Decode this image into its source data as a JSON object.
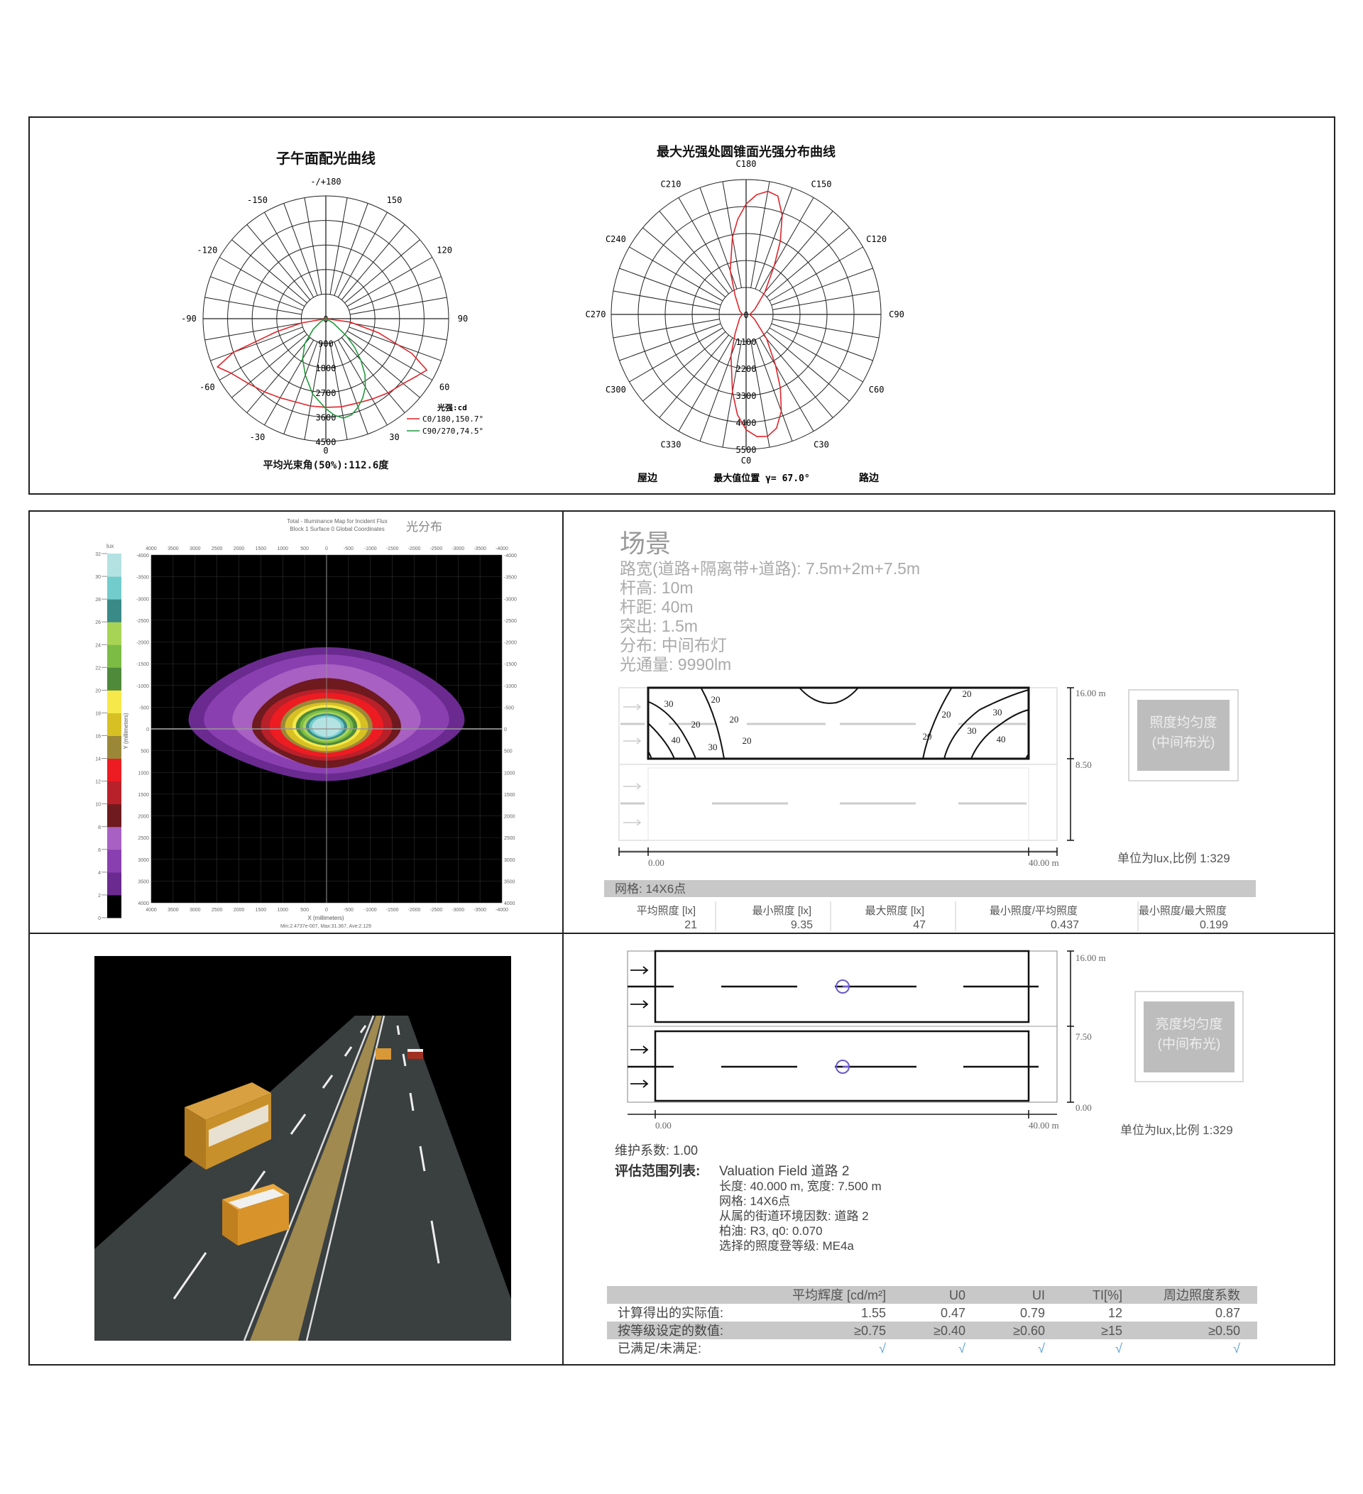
{
  "photometry": {
    "meridian_title": "子午面配光曲线",
    "meridian_angle_labels": {
      "180": "-/+180",
      "150": "150",
      "120": "120",
      "90": "90",
      "60": "60",
      "30": "30",
      "0": "0",
      "-30": "-30",
      "-60": "-60",
      "-90": "-90",
      "-120": "-120",
      "-150": "-150"
    },
    "meridian_ring_labels": [
      "0",
      "900",
      "1800",
      "2700",
      "3600",
      "4500"
    ],
    "legend_unit": "光强:cd",
    "legend": [
      {
        "label": "C0/180,150.7°",
        "color": "#e0242a"
      },
      {
        "label": "C90/270,74.5°",
        "color": "#1f9a3c"
      }
    ],
    "beam_angle": "平均光束角(50%):112.6度",
    "cone_title": "最大光强处圆锥面光强分布曲线",
    "cone_angle_labels": {
      "0": "C0",
      "30": "C30",
      "60": "C60",
      "90": "C90",
      "120": "C120",
      "150": "C150",
      "180": "C180",
      "210": "C210",
      "240": "C240",
      "270": "C270",
      "300": "C300",
      "330": "C330"
    },
    "cone_ring_labels": [
      "0",
      "1100",
      "2200",
      "3300",
      "4400",
      "5500"
    ],
    "house_side": "屋边",
    "max_position": "最大值位置 γ= 67.0°",
    "road_side": "路边"
  },
  "chart_data": [
    {
      "type": "polar",
      "title": "子午面配光曲线",
      "unit": "cd",
      "rmax": 4500,
      "angle_unit": "gamma degrees",
      "series": [
        {
          "name": "C0/180,150.7°",
          "color": "#e0242a",
          "gamma": [
            -90,
            -80,
            -75,
            -70,
            -66,
            -60,
            -50,
            -40,
            -30,
            -20,
            -10,
            0,
            10,
            20,
            30,
            40,
            50,
            58,
            63,
            68,
            75,
            82,
            90
          ],
          "cd": [
            0,
            900,
            1900,
            3600,
            4350,
            4000,
            3700,
            3500,
            3350,
            3250,
            3250,
            3250,
            3280,
            3300,
            3400,
            3550,
            3700,
            3950,
            4150,
            3400,
            2000,
            900,
            0
          ]
        },
        {
          "name": "C90/270,74.5°",
          "color": "#1f9a3c",
          "gamma": [
            -70,
            -60,
            -50,
            -40,
            -30,
            -20,
            -10,
            0,
            5,
            10,
            15,
            20,
            25,
            30,
            35,
            40,
            45,
            50,
            60,
            70
          ],
          "cd": [
            0,
            200,
            600,
            1200,
            1700,
            2200,
            2800,
            3300,
            3550,
            3700,
            3650,
            3450,
            3200,
            2900,
            2500,
            2000,
            1500,
            1000,
            300,
            0
          ]
        }
      ]
    },
    {
      "type": "polar",
      "title": "最大光强处圆锥面光强分布曲线",
      "unit": "cd",
      "rmax": 5500,
      "series": [
        {
          "color": "#e0242a",
          "c_angle": [
            0,
            5,
            10,
            15,
            20,
            25,
            30,
            40,
            60,
            90,
            120,
            140,
            150,
            155,
            160,
            165,
            170,
            175,
            180,
            185,
            190,
            200,
            210,
            240,
            270,
            300,
            330,
            340,
            350,
            355
          ],
          "cd": [
            4700,
            5000,
            5050,
            4800,
            4200,
            3300,
            2400,
            1300,
            400,
            150,
            400,
            1200,
            2300,
            3300,
            4300,
            5000,
            5100,
            4900,
            4500,
            3900,
            3200,
            1900,
            900,
            300,
            150,
            300,
            900,
            1800,
            3200,
            4100
          ]
        }
      ]
    },
    {
      "type": "heatmap",
      "title": "Total - Illuminance Map for Incident Flux",
      "subtitle": "Block 1 Surface 0    Global Coordinates",
      "title_cn": "光分布",
      "xlabel": "X (millimeters)",
      "ylabel": "Y (millimeters)",
      "xlim": [
        4000,
        -4000
      ],
      "ylim": [
        -4000,
        4000
      ],
      "ticks": [
        "4000",
        "3500",
        "3000",
        "2500",
        "2000",
        "1500",
        "1000",
        "500",
        "0",
        "-500",
        "-1000",
        "-1500",
        "-2000",
        "-2500",
        "-3000",
        "-3500",
        "-4000"
      ],
      "colorbar_unit": "lux",
      "colorbar_ticks": [
        "0",
        "2",
        "4",
        "6",
        "8",
        "10",
        "12",
        "14",
        "16",
        "18",
        "20",
        "22",
        "24",
        "26",
        "28",
        "30",
        "32"
      ],
      "colorbar_colors": [
        "#000000",
        "#6a2a90",
        "#8a3fb0",
        "#a860c2",
        "#6e1a1e",
        "#b8202a",
        "#ec1c22",
        "#9a8838",
        "#d6c024",
        "#f6e84a",
        "#4e8a3a",
        "#7cbc44",
        "#a8d456",
        "#3a8a88",
        "#72cccc",
        "#b4e2e2"
      ],
      "stats": "Min:2.4737e-007, Max:31.367, Ave:2.129",
      "grid": true
    }
  ],
  "scene": {
    "title": "场景",
    "lines": [
      "路宽(道路+隔离带+道路): 7.5m+2m+7.5m",
      "杆高: 10m",
      "杆距: 40m",
      "突出: 1.5m",
      "分布: 中间布灯",
      "光通量: 9990lm"
    ]
  },
  "illuminance": {
    "contour_labels": [
      "30",
      "20",
      "20",
      "20",
      "40",
      "30",
      "20",
      "20",
      "20",
      "20",
      "30",
      "30",
      "40"
    ],
    "dim_top": "16.00 m",
    "dim_mid": "8.50",
    "x_start": "0.00",
    "x_end": "40.00 m",
    "badge_line1": "照度均匀度",
    "badge_line2": "(中间布光)",
    "unit_scale": "单位为lux,比例 1:329",
    "grid_label": "网格: 14X6点",
    "stats_headers": [
      "平均照度 [lx]",
      "最小照度 [lx]",
      "最大照度 [lx]",
      "最小照度/平均照度",
      "最小照度/最大照度"
    ],
    "stats_values": [
      "21",
      "9.35",
      "47",
      "0.437",
      "0.199"
    ]
  },
  "luminance": {
    "dim_top": "16.00 m",
    "dim_mid": "7.50",
    "dim_bottom": "0.00",
    "x_start": "0.00",
    "x_end": "40.00 m",
    "badge_line1": "亮度均匀度",
    "badge_line2": "(中间布光)",
    "unit_scale": "单位为lux,比例 1:329",
    "maintenance": "维护系数: 1.00",
    "field_label": "评估范围列表:",
    "field_lines": [
      "Valuation Field 道路 2",
      "长度: 40.000 m, 宽度: 7.500 m",
      "网格: 14X6点",
      "从属的街道环境因数: 道路 2",
      "柏油: R3,  q0: 0.070",
      "选择的照度登等级: ME4a"
    ],
    "table": {
      "headers": [
        "平均辉度 [cd/m²]",
        "U0",
        "UI",
        "TI[%]",
        "周边照度系数"
      ],
      "rows": [
        {
          "label": "计算得出的实际值:",
          "values": [
            "1.55",
            "0.47",
            "0.79",
            "12",
            "0.87"
          ]
        },
        {
          "label": "按等级设定的数值:",
          "values": [
            "≥0.75",
            "≥0.40",
            "≥0.60",
            "≥15",
            "≥0.50"
          ]
        },
        {
          "label": "已满足/未满足:",
          "values": [
            "√",
            "√",
            "√",
            "√",
            "√"
          ]
        }
      ],
      "check_color": "#5aa0d8"
    }
  }
}
